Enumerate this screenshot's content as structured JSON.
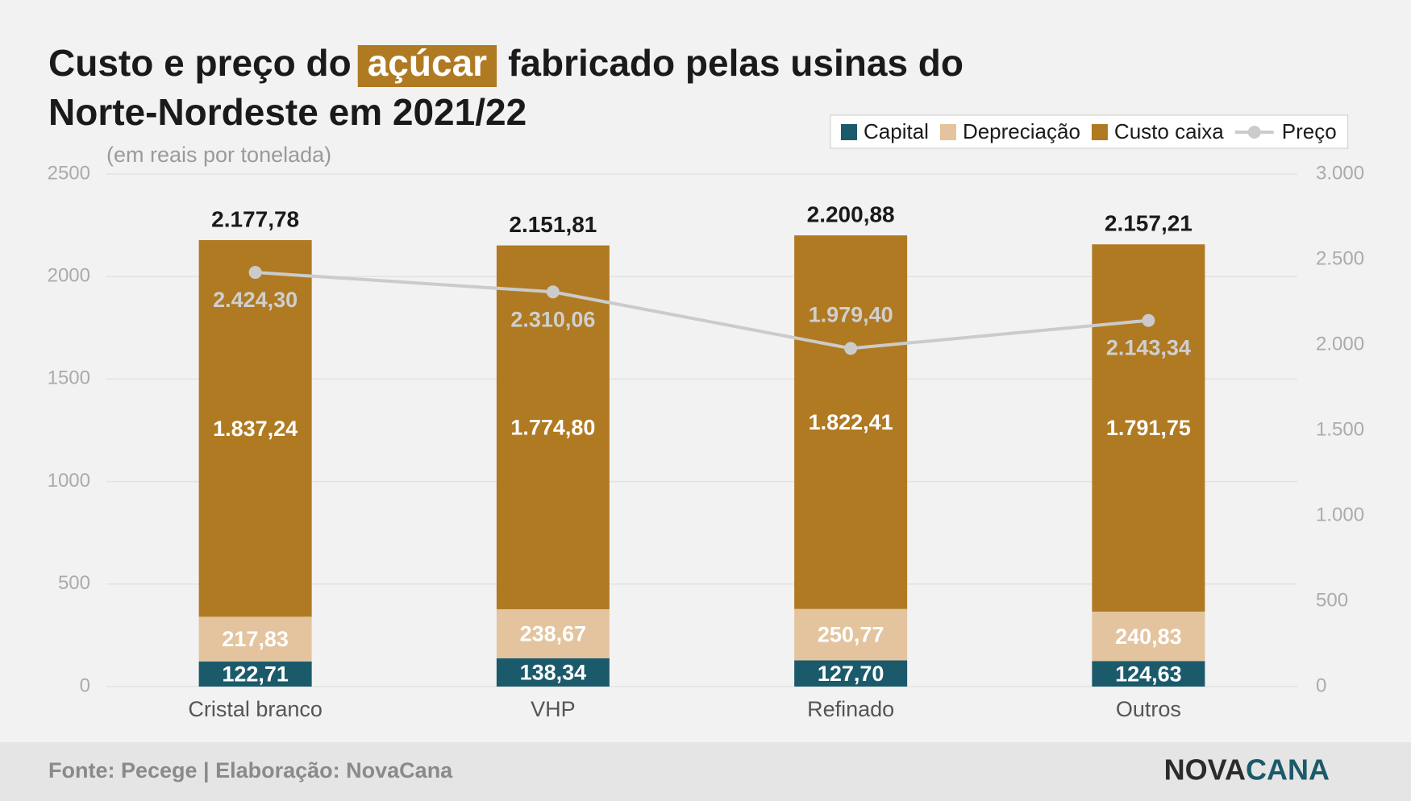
{
  "chart_data": {
    "type": "stacked_bar_line",
    "title": [
      "Custo e preço do",
      "açúcar",
      "fabricado pelas usinas do",
      "Norte-Nordeste em 2021/22"
    ],
    "title_highlight_color": "#b07a22",
    "subtitle": "(em reais por tonelada)",
    "categories": [
      "Cristal branco",
      "VHP",
      "Refinado",
      "Outros"
    ],
    "series": [
      {
        "name": "Capital",
        "color": "#1b5a6b",
        "values": [
          122.71,
          138.34,
          127.7,
          124.63
        ],
        "value_labels": [
          "122,71",
          "138,34",
          "127,70",
          "124,63"
        ]
      },
      {
        "name": "Depreciação",
        "color": "#e3c49f",
        "values": [
          217.83,
          238.67,
          250.77,
          240.83
        ],
        "value_labels": [
          "217,83",
          "238,67",
          "250,77",
          "240,83"
        ]
      },
      {
        "name": "Custo caixa",
        "color": "#b07a22",
        "values": [
          1837.24,
          1774.8,
          1822.41,
          1791.75
        ],
        "value_labels": [
          "1.837,24",
          "1.774,80",
          "1.822,41",
          "1.791,75"
        ]
      },
      {
        "name": "Preço",
        "color": "#cbcbcb",
        "type": "line",
        "axis": "y2",
        "values": [
          2424.3,
          2310.06,
          1979.4,
          2143.34
        ],
        "value_labels": [
          "2.424,30",
          "2.310,06",
          "1.979,40",
          "2.143,34"
        ]
      }
    ],
    "totals": {
      "values": [
        2177.78,
        2151.81,
        2200.88,
        2157.21
      ],
      "value_labels": [
        "2.177,78",
        "2.151,81",
        "2.200,88",
        "2.157,21"
      ]
    },
    "ylim": [
      0,
      2500
    ],
    "yticks": [
      0,
      500,
      1000,
      1500,
      2000,
      2500
    ],
    "y2lim": [
      0,
      3000
    ],
    "y2ticks": [
      0,
      500,
      {
        "value": 1000,
        "label": "1.000"
      },
      {
        "value": 1500,
        "label": "1.500"
      },
      {
        "value": 2000,
        "label": "2.000"
      },
      {
        "value": 2500,
        "label": "2.500"
      },
      {
        "value": 3000,
        "label": "3.000"
      }
    ],
    "grid": true,
    "legend": "top-right",
    "source": "Fonte: Pecege | Elaboração: NovaCana",
    "logo": [
      "NOVA",
      "CANA"
    ]
  }
}
